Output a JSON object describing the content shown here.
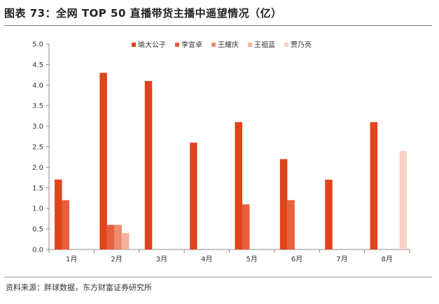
{
  "header": {
    "title": "图表 73：全网 TOP 50 直播带货主播中遥望情况（亿）"
  },
  "footer": {
    "source": "资料来源：胖球数据，东方财富证券研究所"
  },
  "chart_data": {
    "type": "bar",
    "categories": [
      "1月",
      "2月",
      "3月",
      "4月",
      "5月",
      "6月",
      "7月",
      "8月"
    ],
    "series": [
      {
        "name": "瑜大公子",
        "color": "#e0441b",
        "values": [
          1.7,
          4.3,
          4.1,
          2.6,
          3.1,
          2.2,
          1.7,
          3.1
        ]
      },
      {
        "name": "李宣卓",
        "color": "#e8603c",
        "values": [
          1.2,
          0.6,
          null,
          null,
          1.1,
          1.2,
          null,
          null
        ]
      },
      {
        "name": "王耀庆",
        "color": "#ec8a6c",
        "values": [
          null,
          0.6,
          null,
          null,
          null,
          null,
          null,
          null
        ]
      },
      {
        "name": "王祖蓝",
        "color": "#f3b29c",
        "values": [
          null,
          0.4,
          null,
          null,
          null,
          null,
          null,
          null
        ]
      },
      {
        "name": "贾乃亮",
        "color": "#f7d3c6",
        "values": [
          null,
          null,
          null,
          null,
          null,
          null,
          null,
          2.4
        ]
      }
    ],
    "ylim": [
      0,
      5.0
    ],
    "yticks": [
      "0.0",
      "0.5",
      "1.0",
      "1.5",
      "2.0",
      "2.5",
      "3.0",
      "3.5",
      "4.0",
      "4.5",
      "5.0"
    ],
    "legend_position": "top-right",
    "grid": false
  }
}
